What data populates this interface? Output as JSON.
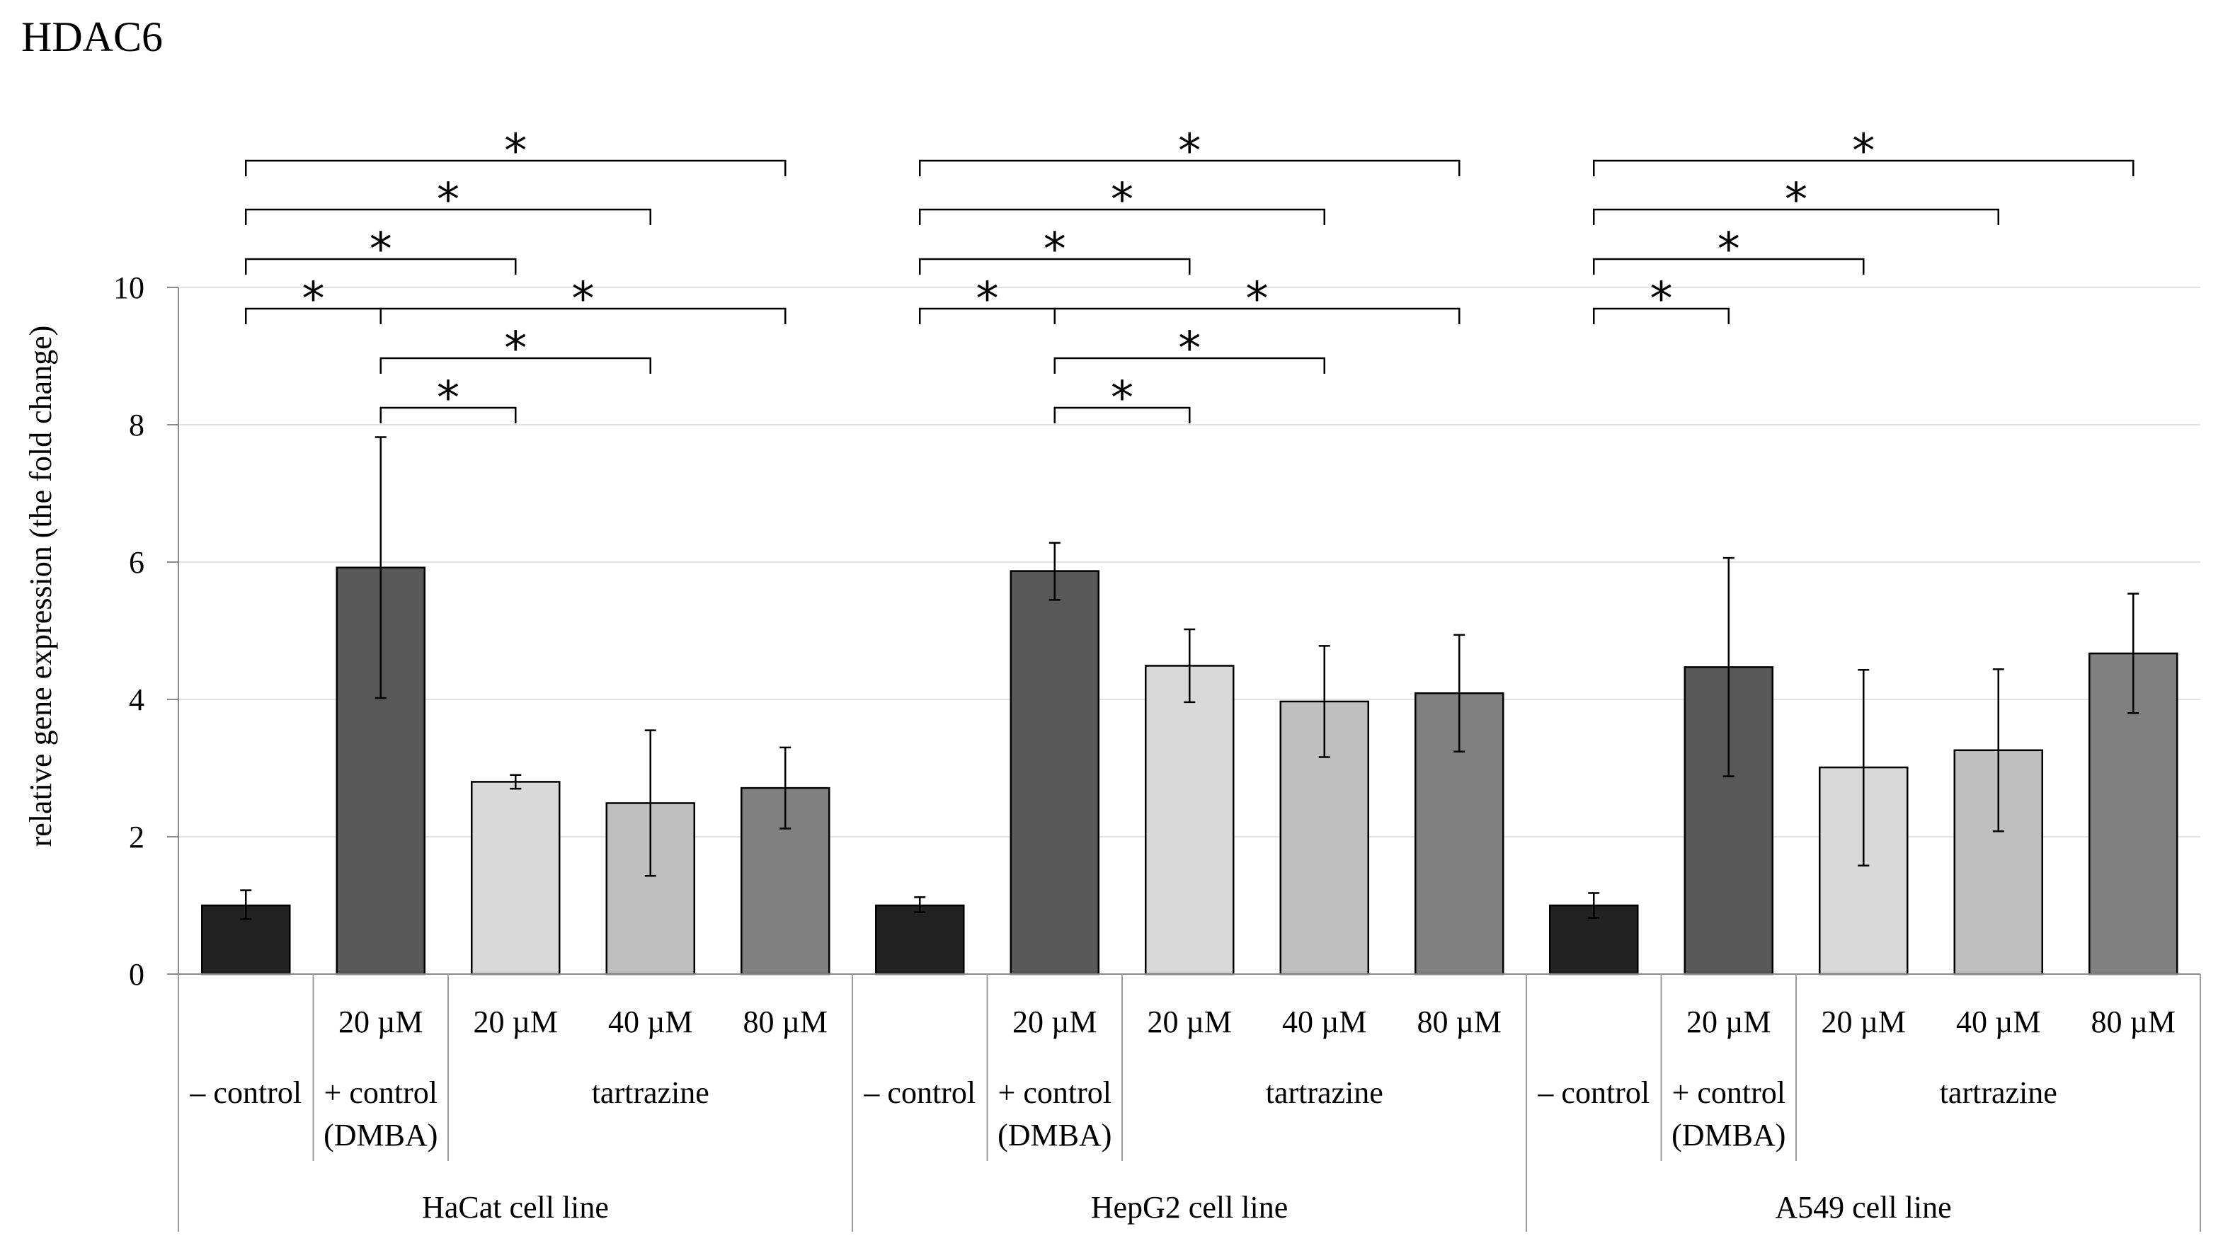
{
  "chart_data": {
    "type": "bar",
    "title": "HDAC6",
    "ylabel": "relative gene expression (the fold change)",
    "xlabel": "",
    "ylim": [
      0,
      10
    ],
    "yticks": [
      "0",
      "2",
      "4",
      "6",
      "8",
      "10"
    ],
    "groups": [
      {
        "label": "HaCat cell line",
        "bars": [
          {
            "dose": "",
            "treatment": "– control",
            "value": 1.0,
            "err_low": 0.8,
            "err_high": 1.22,
            "color": "#222222"
          },
          {
            "dose": "20 µM",
            "treatment": "+ control (DMBA)",
            "value": 5.92,
            "err_low": 4.02,
            "err_high": 7.82,
            "color": "#585858"
          },
          {
            "dose": "20 µM",
            "treatment": "tartrazine",
            "value": 2.8,
            "err_low": 2.7,
            "err_high": 2.9,
            "color": "#d9d9d9"
          },
          {
            "dose": "40 µM",
            "treatment": "tartrazine",
            "value": 2.49,
            "err_low": 1.43,
            "err_high": 3.55,
            "color": "#bfbfbf"
          },
          {
            "dose": "80 µM",
            "treatment": "tartrazine",
            "value": 2.71,
            "err_low": 2.12,
            "err_high": 3.3,
            "color": "#808080"
          }
        ],
        "significance": [
          {
            "from": 0,
            "to": 4,
            "label": "*"
          },
          {
            "from": 0,
            "to": 3,
            "label": "*"
          },
          {
            "from": 0,
            "to": 2,
            "label": "*"
          },
          {
            "from": 0,
            "to": 1,
            "label": "*"
          },
          {
            "from": 1,
            "to": 4,
            "label": "*"
          },
          {
            "from": 1,
            "to": 3,
            "label": "*"
          },
          {
            "from": 1,
            "to": 2,
            "label": "*"
          }
        ]
      },
      {
        "label": "HepG2 cell line",
        "bars": [
          {
            "dose": "",
            "treatment": "– control",
            "value": 1.0,
            "err_low": 0.9,
            "err_high": 1.12,
            "color": "#222222"
          },
          {
            "dose": "20 µM",
            "treatment": "+ control (DMBA)",
            "value": 5.87,
            "err_low": 5.45,
            "err_high": 6.28,
            "color": "#585858"
          },
          {
            "dose": "20 µM",
            "treatment": "tartrazine",
            "value": 4.49,
            "err_low": 3.96,
            "err_high": 5.02,
            "color": "#d9d9d9"
          },
          {
            "dose": "40 µM",
            "treatment": "tartrazine",
            "value": 3.97,
            "err_low": 3.16,
            "err_high": 4.78,
            "color": "#bfbfbf"
          },
          {
            "dose": "80 µM",
            "treatment": "tartrazine",
            "value": 4.09,
            "err_low": 3.24,
            "err_high": 4.94,
            "color": "#808080"
          }
        ],
        "significance": [
          {
            "from": 0,
            "to": 4,
            "label": "*"
          },
          {
            "from": 0,
            "to": 3,
            "label": "*"
          },
          {
            "from": 0,
            "to": 2,
            "label": "*"
          },
          {
            "from": 0,
            "to": 1,
            "label": "*"
          },
          {
            "from": 1,
            "to": 4,
            "label": "*"
          },
          {
            "from": 1,
            "to": 3,
            "label": "*"
          },
          {
            "from": 1,
            "to": 2,
            "label": "*"
          }
        ]
      },
      {
        "label": "A549 cell line",
        "bars": [
          {
            "dose": "",
            "treatment": "– control",
            "value": 1.0,
            "err_low": 0.82,
            "err_high": 1.18,
            "color": "#222222"
          },
          {
            "dose": "20 µM",
            "treatment": "+ control (DMBA)",
            "value": 4.47,
            "err_low": 2.88,
            "err_high": 6.06,
            "color": "#585858"
          },
          {
            "dose": "20 µM",
            "treatment": "tartrazine",
            "value": 3.01,
            "err_low": 1.58,
            "err_high": 4.43,
            "color": "#d9d9d9"
          },
          {
            "dose": "40 µM",
            "treatment": "tartrazine",
            "value": 3.26,
            "err_low": 2.08,
            "err_high": 4.44,
            "color": "#bfbfbf"
          },
          {
            "dose": "80 µM",
            "treatment": "tartrazine",
            "value": 4.67,
            "err_low": 3.8,
            "err_high": 5.54,
            "color": "#808080"
          }
        ],
        "significance": [
          {
            "from": 0,
            "to": 4,
            "label": "*"
          },
          {
            "from": 0,
            "to": 3,
            "label": "*"
          },
          {
            "from": 0,
            "to": 2,
            "label": "*"
          },
          {
            "from": 0,
            "to": 1,
            "label": "*"
          }
        ]
      }
    ],
    "treatment_labels": {
      "neg_control": "– control",
      "pos_control_line1": "+ control",
      "pos_control_line2": "(DMBA)",
      "tartrazine": "tartrazine"
    }
  }
}
